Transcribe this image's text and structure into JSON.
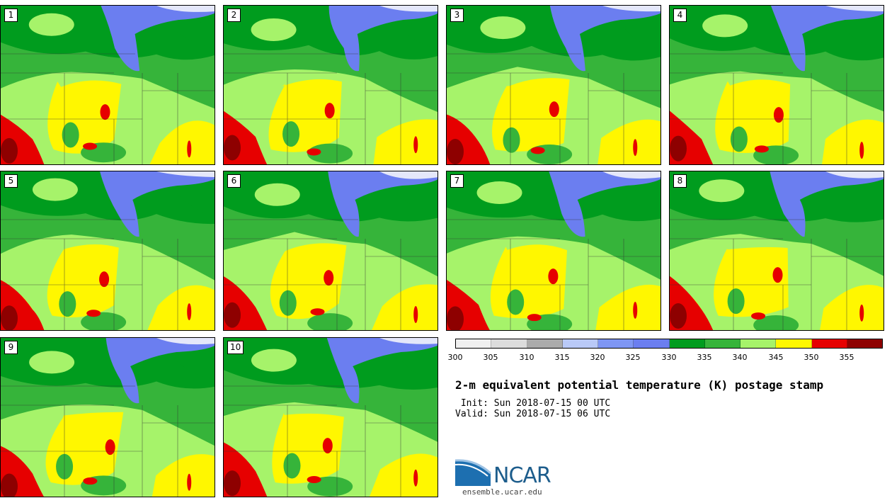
{
  "title": "2-m equivalent potential temperature (K) postage stamp",
  "init": " Init: Sun 2018-07-15 00 UTC",
  "valid": "Valid: Sun 2018-07-15 06 UTC",
  "site": "ensemble.ucar.edu",
  "logo": "NCAR",
  "colorbar": {
    "ticks": [
      "300",
      "305",
      "310",
      "315",
      "320",
      "325",
      "330",
      "335",
      "340",
      "345",
      "350",
      "355"
    ],
    "colors": [
      "#f0f0f0",
      "#dcdcdc",
      "#ababab",
      "#b9c9f7",
      "#7e96f4",
      "#6b7ef0",
      "#009c1e",
      "#36b43a",
      "#a6f36a",
      "#fff700",
      "#e60000",
      "#8e0000"
    ]
  },
  "members": [
    "1",
    "2",
    "3",
    "4",
    "5",
    "6",
    "7",
    "8",
    "9",
    "10"
  ]
}
